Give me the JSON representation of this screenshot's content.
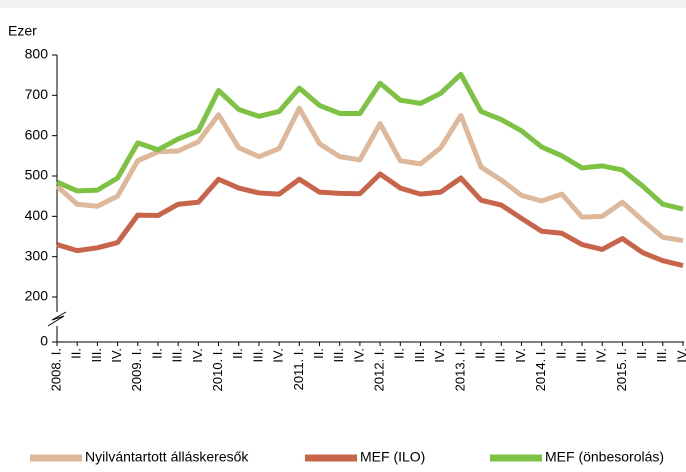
{
  "chart_data": {
    "type": "line",
    "y_label": "Ezer",
    "categories": [
      "2008. I.",
      "II.",
      "III.",
      "IV.",
      "2009. I.",
      "II.",
      "III.",
      "IV.",
      "2010. I.",
      "II.",
      "III.",
      "IV.",
      "2011. I.",
      "II.",
      "III.",
      "IV.",
      "2012. I.",
      "II.",
      "III.",
      "IV.",
      "2013. I.",
      "II.",
      "III.",
      "IV.",
      "2014. I.",
      "II.",
      "III.",
      "IV.",
      "2015. I.",
      "II.",
      "III.",
      "IV."
    ],
    "series": [
      {
        "name": "Nyilvántartott álláskeresők",
        "color": "#ddb89a",
        "values": [
          475,
          430,
          425,
          450,
          538,
          560,
          562,
          585,
          652,
          570,
          548,
          568,
          668,
          580,
          548,
          540,
          630,
          538,
          530,
          570,
          650,
          522,
          490,
          452,
          438,
          455,
          398,
          400,
          435,
          390,
          348,
          340
        ]
      },
      {
        "name": "MEF (ILO)",
        "color": "#c8644a",
        "values": [
          330,
          315,
          322,
          335,
          403,
          402,
          430,
          435,
          492,
          470,
          458,
          455,
          492,
          460,
          457,
          456,
          505,
          470,
          455,
          460,
          495,
          440,
          428,
          395,
          363,
          358,
          330,
          318,
          345,
          310,
          290,
          278
        ]
      },
      {
        "name": "MEF (önbesorolás)",
        "color": "#7dc242",
        "values": [
          485,
          463,
          465,
          495,
          582,
          565,
          592,
          612,
          712,
          665,
          648,
          660,
          718,
          675,
          655,
          655,
          730,
          688,
          680,
          705,
          752,
          660,
          640,
          612,
          572,
          550,
          520,
          525,
          515,
          475,
          430,
          418
        ]
      }
    ],
    "ylim": [
      0,
      800
    ],
    "yticks": [
      0,
      200,
      300,
      400,
      500,
      600,
      700,
      800
    ],
    "y_break": true,
    "grid": false,
    "legend": "bottom"
  }
}
